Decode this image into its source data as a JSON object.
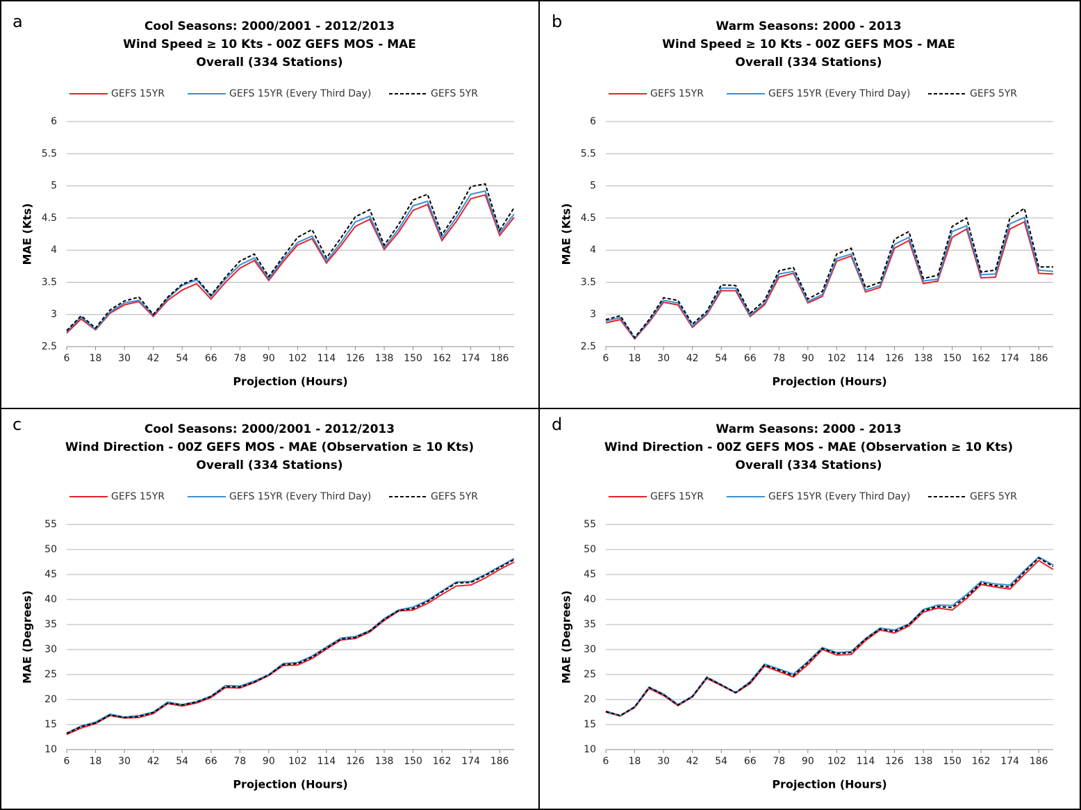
{
  "chart_data": [
    {
      "type": "line",
      "label": "a",
      "title": [
        "Cool Seasons: 2000/2001 - 2012/2013",
        "Wind Speed ≥ 10 Kts - 00Z GEFS MOS - MAE",
        "Overall (334 Stations)"
      ],
      "x_label": "Projection (Hours)",
      "y_label": "MAE (Kts)",
      "x": [
        6,
        12,
        18,
        24,
        30,
        36,
        42,
        48,
        54,
        60,
        66,
        72,
        78,
        84,
        90,
        96,
        102,
        108,
        114,
        120,
        126,
        132,
        138,
        144,
        150,
        156,
        162,
        168,
        174,
        180,
        186,
        192
      ],
      "xlim": [
        6,
        192
      ],
      "xticks": [
        6,
        18,
        30,
        42,
        54,
        66,
        78,
        90,
        102,
        114,
        126,
        138,
        150,
        162,
        174,
        186
      ],
      "ylim": [
        2.5,
        6
      ],
      "yticks": [
        2.5,
        3,
        3.5,
        4,
        4.5,
        5,
        5.5,
        6
      ],
      "grid": true,
      "series": [
        {
          "name": "GEFS 15YR",
          "color": "#e8202a",
          "line_style": "solid",
          "values": [
            2.71,
            2.93,
            2.76,
            3.02,
            3.15,
            3.2,
            2.97,
            3.22,
            3.38,
            3.48,
            3.24,
            3.5,
            3.72,
            3.84,
            3.53,
            3.82,
            4.08,
            4.18,
            3.8,
            4.07,
            4.37,
            4.48,
            4.01,
            4.28,
            4.62,
            4.71,
            4.15,
            4.45,
            4.8,
            4.86,
            4.23,
            4.51
          ]
        },
        {
          "name": "GEFS 15YR (Every Third Day)",
          "color": "#3a8fd6",
          "line_style": "solid",
          "values": [
            2.73,
            2.96,
            2.77,
            3.04,
            3.18,
            3.22,
            2.99,
            3.25,
            3.45,
            3.54,
            3.28,
            3.55,
            3.77,
            3.88,
            3.56,
            3.86,
            4.12,
            4.22,
            3.83,
            4.12,
            4.44,
            4.53,
            4.04,
            4.33,
            4.69,
            4.76,
            4.19,
            4.51,
            4.87,
            4.92,
            4.27,
            4.56
          ]
        },
        {
          "name": "GEFS 5YR",
          "color": "#000000",
          "line_style": "dashed",
          "values": [
            2.75,
            2.98,
            2.79,
            3.07,
            3.21,
            3.27,
            3.0,
            3.27,
            3.47,
            3.56,
            3.3,
            3.58,
            3.83,
            3.94,
            3.59,
            3.9,
            4.2,
            4.32,
            3.88,
            4.19,
            4.52,
            4.63,
            4.08,
            4.4,
            4.78,
            4.87,
            4.24,
            4.58,
            4.99,
            5.03,
            4.31,
            4.66
          ]
        }
      ]
    },
    {
      "type": "line",
      "label": "b",
      "title": [
        "Warm Seasons: 2000 - 2013",
        "Wind Speed ≥ 10 Kts - 00Z GEFS MOS - MAE",
        "Overall (334 Stations)"
      ],
      "x_label": "Projection (Hours)",
      "y_label": "MAE (Kts)",
      "x": [
        6,
        12,
        18,
        24,
        30,
        36,
        42,
        48,
        54,
        60,
        66,
        72,
        78,
        84,
        90,
        96,
        102,
        108,
        114,
        120,
        126,
        132,
        138,
        144,
        150,
        156,
        162,
        168,
        174,
        180,
        186,
        192
      ],
      "xlim": [
        6,
        192
      ],
      "xticks": [
        6,
        18,
        30,
        42,
        54,
        66,
        78,
        90,
        102,
        114,
        126,
        138,
        150,
        162,
        174,
        186
      ],
      "ylim": [
        2.5,
        6
      ],
      "yticks": [
        2.5,
        3,
        3.5,
        4,
        4.5,
        5,
        5.5,
        6
      ],
      "grid": true,
      "series": [
        {
          "name": "GEFS 15YR",
          "color": "#e8202a",
          "line_style": "solid",
          "values": [
            2.87,
            2.92,
            2.62,
            2.88,
            3.19,
            3.15,
            2.8,
            3.0,
            3.37,
            3.37,
            2.97,
            3.15,
            3.58,
            3.64,
            3.18,
            3.28,
            3.83,
            3.91,
            3.35,
            3.42,
            4.03,
            4.15,
            3.48,
            3.52,
            4.2,
            4.33,
            3.57,
            3.58,
            4.33,
            4.44,
            3.64,
            3.63
          ]
        },
        {
          "name": "GEFS 15YR (Every Third Day)",
          "color": "#3a8fd6",
          "line_style": "solid",
          "values": [
            2.9,
            2.95,
            2.63,
            2.9,
            3.22,
            3.18,
            2.82,
            3.02,
            3.41,
            3.41,
            2.99,
            3.18,
            3.63,
            3.67,
            3.2,
            3.31,
            3.87,
            3.94,
            3.38,
            3.45,
            4.09,
            4.2,
            3.52,
            3.55,
            4.29,
            4.38,
            3.62,
            3.63,
            4.41,
            4.51,
            3.69,
            3.67
          ]
        },
        {
          "name": "GEFS 5YR",
          "color": "#000000",
          "line_style": "dashed",
          "values": [
            2.92,
            2.98,
            2.64,
            2.92,
            3.26,
            3.22,
            2.85,
            3.05,
            3.46,
            3.45,
            3.02,
            3.22,
            3.68,
            3.73,
            3.24,
            3.36,
            3.94,
            4.03,
            3.42,
            3.5,
            4.17,
            4.29,
            3.56,
            3.61,
            4.37,
            4.5,
            3.66,
            3.69,
            4.5,
            4.65,
            3.74,
            3.74
          ]
        }
      ]
    },
    {
      "type": "line",
      "label": "c",
      "title": [
        "Cool Seasons: 2000/2001 - 2012/2013",
        "Wind Direction - 00Z GEFS MOS - MAE (Observation ≥ 10 Kts)",
        "Overall (334 Stations)"
      ],
      "x_label": "Projection (Hours)",
      "y_label": "MAE (Degrees)",
      "x": [
        6,
        12,
        18,
        24,
        30,
        36,
        42,
        48,
        54,
        60,
        66,
        72,
        78,
        84,
        90,
        96,
        102,
        108,
        114,
        120,
        126,
        132,
        138,
        144,
        150,
        156,
        162,
        168,
        174,
        180,
        186,
        192
      ],
      "xlim": [
        6,
        192
      ],
      "xticks": [
        6,
        18,
        30,
        42,
        54,
        66,
        78,
        90,
        102,
        114,
        126,
        138,
        150,
        162,
        174,
        186
      ],
      "ylim": [
        10,
        55
      ],
      "yticks": [
        10,
        15,
        20,
        25,
        30,
        35,
        40,
        45,
        50,
        55
      ],
      "grid": true,
      "series": [
        {
          "name": "GEFS 15YR",
          "color": "#e8202a",
          "line_style": "solid",
          "values": [
            13.0,
            14.3,
            15.2,
            16.8,
            16.3,
            16.4,
            17.2,
            19.2,
            18.7,
            19.3,
            20.4,
            22.4,
            22.3,
            23.4,
            24.8,
            26.8,
            26.9,
            28.2,
            30.1,
            31.9,
            32.2,
            33.5,
            35.8,
            37.7,
            37.9,
            39.2,
            41.0,
            42.7,
            42.9,
            44.3,
            46.0,
            47.5
          ]
        },
        {
          "name": "GEFS 15YR (Every Third Day)",
          "color": "#3a8fd6",
          "line_style": "solid",
          "values": [
            13.3,
            14.7,
            15.5,
            17.1,
            16.5,
            16.8,
            17.5,
            19.5,
            19.0,
            19.6,
            20.7,
            22.8,
            22.7,
            23.7,
            25.0,
            27.2,
            27.4,
            28.7,
            30.5,
            32.3,
            32.6,
            33.8,
            36.2,
            37.9,
            38.5,
            39.8,
            41.7,
            43.5,
            43.6,
            45.0,
            46.6,
            48.2
          ]
        },
        {
          "name": "GEFS 5YR",
          "color": "#000000",
          "line_style": "dashed",
          "values": [
            13.2,
            14.6,
            15.3,
            16.9,
            16.4,
            16.6,
            17.4,
            19.3,
            18.9,
            19.5,
            20.6,
            22.6,
            22.5,
            23.5,
            24.9,
            27.0,
            27.2,
            28.5,
            30.3,
            32.1,
            32.4,
            33.7,
            36.0,
            37.8,
            38.2,
            39.6,
            41.5,
            43.3,
            43.4,
            44.8,
            46.4,
            48.0
          ]
        }
      ]
    },
    {
      "type": "line",
      "label": "d",
      "title": [
        "Warm Seasons: 2000 - 2013",
        "Wind Direction - 00Z GEFS MOS - MAE (Observation ≥ 10 Kts)",
        "Overall (334 Stations)"
      ],
      "x_label": "Projection (Hours)",
      "y_label": "MAE (Degrees)",
      "x": [
        6,
        12,
        18,
        24,
        30,
        36,
        42,
        48,
        54,
        60,
        66,
        72,
        78,
        84,
        90,
        96,
        102,
        108,
        114,
        120,
        126,
        132,
        138,
        144,
        150,
        156,
        162,
        168,
        174,
        180,
        186,
        192
      ],
      "xlim": [
        6,
        192
      ],
      "xticks": [
        6,
        18,
        30,
        42,
        54,
        66,
        78,
        90,
        102,
        114,
        126,
        138,
        150,
        162,
        174,
        186
      ],
      "ylim": [
        10,
        55
      ],
      "yticks": [
        10,
        15,
        20,
        25,
        30,
        35,
        40,
        45,
        50,
        55
      ],
      "grid": true,
      "series": [
        {
          "name": "GEFS 15YR",
          "color": "#e8202a",
          "line_style": "solid",
          "values": [
            17.5,
            16.7,
            18.4,
            22.2,
            20.8,
            18.8,
            20.5,
            24.2,
            22.8,
            21.3,
            23.2,
            26.7,
            25.6,
            24.5,
            27.0,
            30.0,
            28.9,
            29.0,
            31.8,
            33.9,
            33.3,
            34.7,
            37.5,
            38.3,
            37.9,
            40.2,
            43.0,
            42.5,
            42.1,
            45.0,
            47.8,
            46.0
          ]
        },
        {
          "name": "GEFS 15YR (Every Third Day)",
          "color": "#3a8fd6",
          "line_style": "solid",
          "values": [
            17.7,
            16.8,
            18.6,
            22.5,
            21.1,
            19.0,
            20.7,
            24.5,
            23.0,
            21.4,
            23.6,
            27.1,
            26.1,
            25.1,
            27.6,
            30.4,
            29.4,
            29.6,
            32.2,
            34.3,
            33.9,
            35.1,
            38.0,
            38.9,
            38.8,
            41.0,
            43.6,
            43.1,
            42.9,
            45.8,
            48.5,
            46.9
          ]
        },
        {
          "name": "GEFS 5YR",
          "color": "#000000",
          "line_style": "dashed",
          "values": [
            17.6,
            16.8,
            18.5,
            22.4,
            21.0,
            18.9,
            20.6,
            24.4,
            22.9,
            21.4,
            23.4,
            26.9,
            25.9,
            24.8,
            27.4,
            30.2,
            29.2,
            29.4,
            32.1,
            34.1,
            33.6,
            35.0,
            37.8,
            38.6,
            38.4,
            40.6,
            43.3,
            42.8,
            42.5,
            45.5,
            48.3,
            46.6
          ]
        }
      ]
    }
  ]
}
